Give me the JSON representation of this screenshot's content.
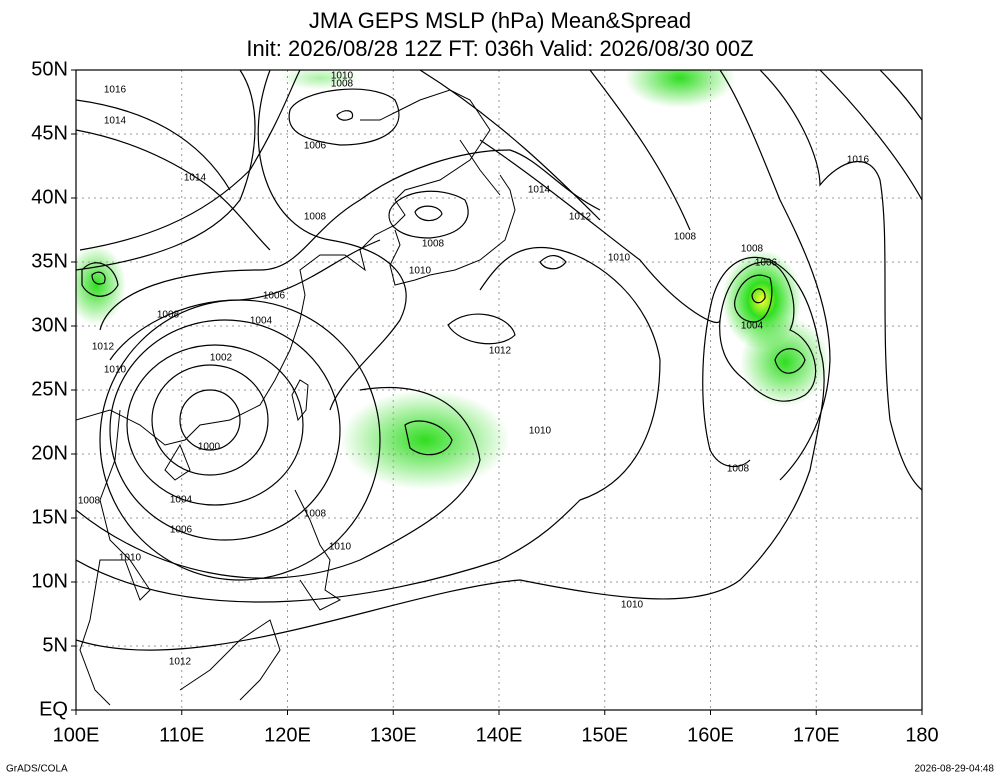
{
  "title": {
    "line1": "JMA GEPS MSLP (hPa) Mean&Spread",
    "line2": "Init: 2026/08/28 12Z  FT: 036h  Valid: 2026/08/30 00Z"
  },
  "axes": {
    "lat": [
      {
        "value": 50,
        "label": "50N"
      },
      {
        "value": 45,
        "label": "45N"
      },
      {
        "value": 40,
        "label": "40N"
      },
      {
        "value": 35,
        "label": "35N"
      },
      {
        "value": 30,
        "label": "30N"
      },
      {
        "value": 25,
        "label": "25N"
      },
      {
        "value": 20,
        "label": "20N"
      },
      {
        "value": 15,
        "label": "15N"
      },
      {
        "value": 10,
        "label": "10N"
      },
      {
        "value": 5,
        "label": "5N"
      },
      {
        "value": 0,
        "label": "EQ"
      }
    ],
    "lon": [
      {
        "value": 100,
        "label": "100E"
      },
      {
        "value": 110,
        "label": "110E"
      },
      {
        "value": 120,
        "label": "120E"
      },
      {
        "value": 130,
        "label": "130E"
      },
      {
        "value": 140,
        "label": "140E"
      },
      {
        "value": 150,
        "label": "150E"
      },
      {
        "value": 160,
        "label": "160E"
      },
      {
        "value": 170,
        "label": "170E"
      },
      {
        "value": 180,
        "label": "180"
      }
    ],
    "latlim": [
      0,
      50
    ],
    "lonlim": [
      100,
      180
    ]
  },
  "contour_labels": [
    "1016",
    "1014",
    "1010",
    "1008",
    "1006",
    "1014",
    "1008",
    "1008",
    "1010",
    "1006",
    "1004",
    "1008",
    "1012",
    "1010",
    "1002",
    "1000",
    "1004",
    "1006",
    "1008",
    "1010",
    "1008",
    "1010",
    "1012",
    "1012",
    "1010",
    "1010",
    "1012",
    "1014",
    "1008",
    "1008",
    "1006",
    "1004",
    "1008",
    "1016",
    "1010"
  ],
  "footer": {
    "left": "GrADS/COLA",
    "right": "2026-08-29-04:48"
  }
}
